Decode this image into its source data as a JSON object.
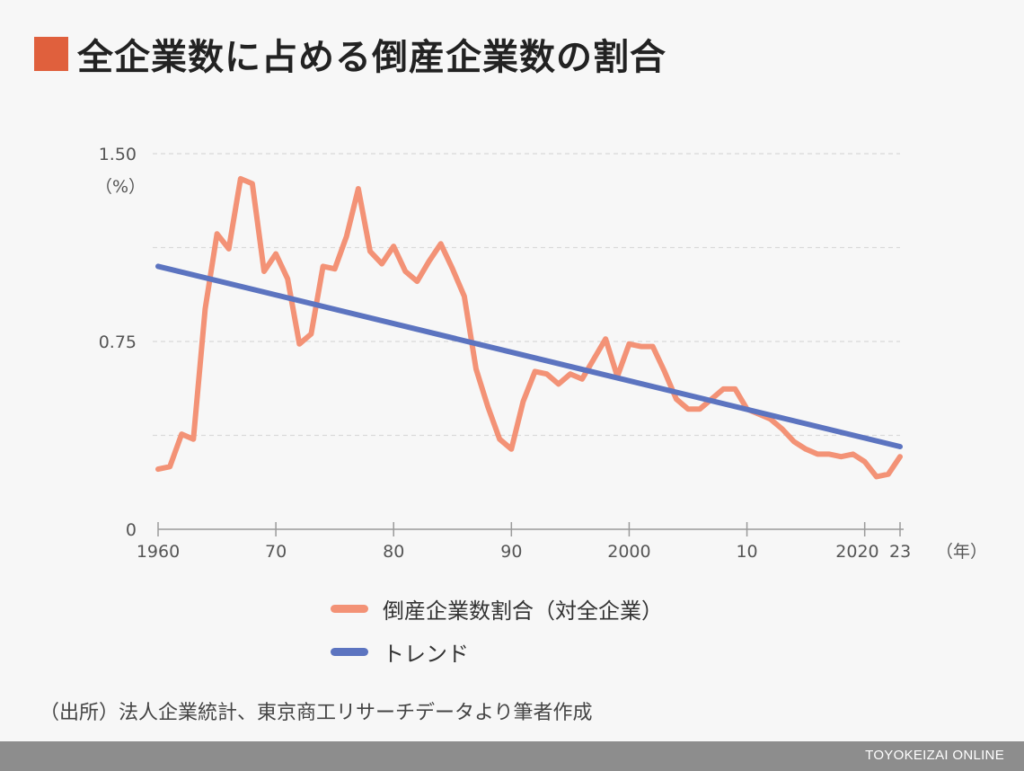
{
  "title": "全企業数に占める倒産企業数の割合",
  "source": "（出所）法人企業統計、東京商工リサーチデータより筆者作成",
  "footer": "TOYOKEIZAI ONLINE",
  "colors": {
    "title_square": "#e0603d",
    "series_ratio": "#f39276",
    "series_trend": "#5c74c0",
    "grid": "#d9d9d9",
    "axis": "#9a9a9a",
    "footer_bg": "#8d8d8d"
  },
  "chart_data": {
    "type": "line",
    "ylabel": "（%）",
    "xlabel": "（年）",
    "ylim": [
      0,
      1.5
    ],
    "xlim": [
      1960,
      2023
    ],
    "y_tick_labels": [
      {
        "value": 1.5,
        "label": "1.50"
      },
      {
        "value": 0.75,
        "label": "0.75"
      },
      {
        "value": 0,
        "label": "0"
      }
    ],
    "y_gridlines": [
      0.375,
      0.75,
      1.125,
      1.5
    ],
    "x_tick_labels": [
      {
        "value": 1960,
        "label": "1960"
      },
      {
        "value": 1970,
        "label": "70"
      },
      {
        "value": 1980,
        "label": "80"
      },
      {
        "value": 1990,
        "label": "90"
      },
      {
        "value": 2000,
        "label": "2000"
      },
      {
        "value": 2010,
        "label": "10"
      },
      {
        "value": 2020,
        "label": "2020"
      },
      {
        "value": 2023,
        "label": "23"
      }
    ],
    "grid": true,
    "legend_position": "bottom",
    "series": [
      {
        "name": "倒産企業数割合（対全企業）",
        "color": "#f39276",
        "x": [
          1960,
          1961,
          1962,
          1963,
          1964,
          1965,
          1966,
          1967,
          1968,
          1969,
          1970,
          1971,
          1972,
          1973,
          1974,
          1975,
          1976,
          1977,
          1978,
          1979,
          1980,
          1981,
          1982,
          1983,
          1984,
          1985,
          1986,
          1987,
          1988,
          1989,
          1990,
          1991,
          1992,
          1993,
          1994,
          1995,
          1996,
          1997,
          1998,
          1999,
          2000,
          2001,
          2002,
          2003,
          2004,
          2005,
          2006,
          2007,
          2008,
          2009,
          2010,
          2011,
          2012,
          2013,
          2014,
          2015,
          2016,
          2017,
          2018,
          2019,
          2020,
          2021,
          2022,
          2023
        ],
        "values": [
          0.24,
          0.25,
          0.38,
          0.36,
          0.88,
          1.18,
          1.12,
          1.4,
          1.38,
          1.03,
          1.1,
          1.0,
          0.74,
          0.78,
          1.05,
          1.04,
          1.17,
          1.36,
          1.11,
          1.06,
          1.13,
          1.03,
          0.99,
          1.07,
          1.14,
          1.04,
          0.93,
          0.64,
          0.49,
          0.36,
          0.32,
          0.51,
          0.63,
          0.62,
          0.58,
          0.62,
          0.6,
          0.68,
          0.76,
          0.61,
          0.74,
          0.73,
          0.73,
          0.63,
          0.52,
          0.48,
          0.48,
          0.52,
          0.56,
          0.56,
          0.48,
          0.46,
          0.44,
          0.4,
          0.35,
          0.32,
          0.3,
          0.3,
          0.29,
          0.3,
          0.27,
          0.21,
          0.22,
          0.29
        ]
      },
      {
        "name": "トレンド",
        "color": "#5c74c0",
        "x": [
          1960,
          2023
        ],
        "values": [
          1.05,
          0.33
        ]
      }
    ]
  }
}
